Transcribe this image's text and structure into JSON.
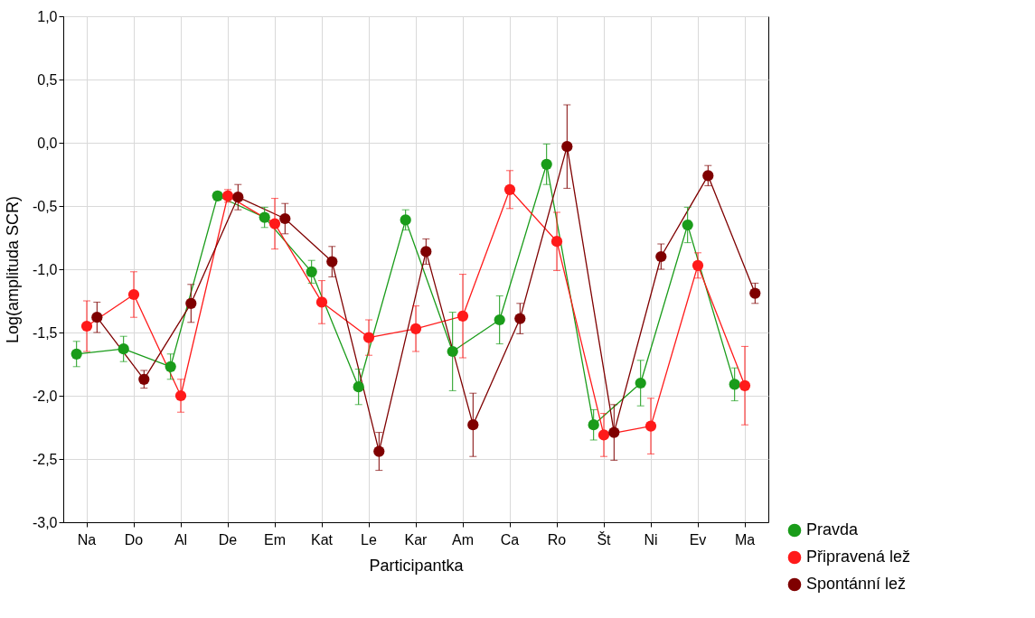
{
  "chart_data": {
    "type": "line",
    "xlabel": "Participantka",
    "ylabel": "Log(amplituda SCR)",
    "categories": [
      "Na",
      "Do",
      "Al",
      "De",
      "Em",
      "Kat",
      "Le",
      "Kar",
      "Am",
      "Ca",
      "Ro",
      "Št",
      "Ni",
      "Ev",
      "Ma"
    ],
    "ylim": [
      -3.0,
      1.0
    ],
    "yticks": [
      {
        "value": -3.0,
        "label": "-3,0"
      },
      {
        "value": -2.5,
        "label": "-2,5"
      },
      {
        "value": -2.0,
        "label": "-2,0"
      },
      {
        "value": -1.5,
        "label": "-1,5"
      },
      {
        "value": -1.0,
        "label": "-1,0"
      },
      {
        "value": -0.5,
        "label": "-0,5"
      },
      {
        "value": 0,
        "label": "0,0"
      },
      {
        "value": 0.5,
        "label": "0,5"
      },
      {
        "value": 1.0,
        "label": "1,0"
      }
    ],
    "grid": true,
    "legend": "bottom right",
    "marker": "circle",
    "line_style": "solid",
    "series": [
      {
        "name": "Pravda",
        "color": "#1a9c1a",
        "values": [
          -1.67,
          -1.63,
          -1.77,
          -0.42,
          -0.59,
          -1.02,
          -1.93,
          -0.61,
          -1.65,
          -1.4,
          -0.17,
          -2.23,
          -1.9,
          -0.65,
          -1.91
        ],
        "errors": [
          0.1,
          0.1,
          0.1,
          0.03,
          0.08,
          0.09,
          0.14,
          0.08,
          0.31,
          0.19,
          0.16,
          0.12,
          0.18,
          0.14,
          0.13
        ]
      },
      {
        "name": "Připravená lež",
        "color": "#ff1a1a",
        "values": [
          -1.45,
          -1.2,
          -2.0,
          -0.42,
          -0.64,
          -1.26,
          -1.54,
          -1.47,
          -1.37,
          -0.37,
          -0.78,
          -2.31,
          -2.24,
          -0.97,
          -1.92
        ],
        "errors": [
          0.2,
          0.18,
          0.13,
          0.05,
          0.2,
          0.17,
          0.14,
          0.18,
          0.33,
          0.15,
          0.23,
          0.17,
          0.22,
          0.1,
          0.31
        ]
      },
      {
        "name": "Spontánní lež",
        "color": "#7f0000",
        "values": [
          -1.38,
          -1.87,
          -1.27,
          -0.43,
          -0.6,
          -0.94,
          -2.44,
          -0.86,
          -2.23,
          -1.39,
          -0.03,
          -2.29,
          -0.9,
          -0.26,
          -1.19
        ],
        "errors": [
          0.12,
          0.07,
          0.15,
          0.1,
          0.12,
          0.12,
          0.15,
          0.1,
          0.25,
          0.12,
          0.33,
          0.22,
          0.1,
          0.08,
          0.08
        ]
      }
    ]
  }
}
